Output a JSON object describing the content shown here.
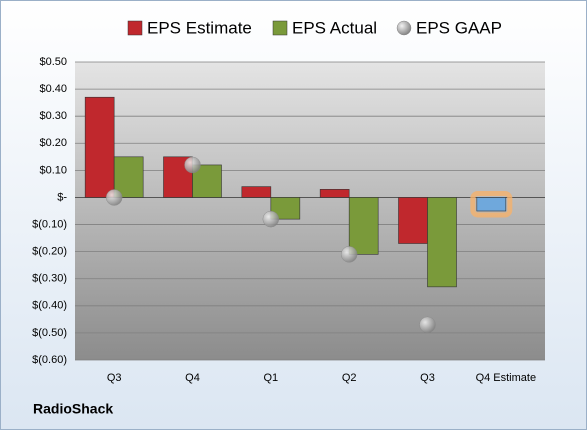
{
  "chart_data": {
    "type": "bar",
    "categories": [
      "Q3",
      "Q4",
      "Q1",
      "Q2",
      "Q3",
      "Q4 Estimate"
    ],
    "series": [
      {
        "name": "EPS Estimate",
        "color": "#c0282d",
        "colors": [
          "#c0282d",
          "#c0282d",
          "#c0282d",
          "#c0282d",
          "#c0282d",
          "#6fa8dc"
        ],
        "values": [
          0.37,
          0.15,
          0.04,
          0.03,
          -0.17,
          -0.05
        ]
      },
      {
        "name": "EPS Actual",
        "color": "#7a9a3a",
        "values": [
          0.15,
          0.12,
          -0.08,
          -0.21,
          -0.33,
          null
        ]
      },
      {
        "name": "EPS GAAP",
        "color": "#a6a6a6",
        "marker": "circle",
        "values": [
          0.0,
          0.12,
          -0.08,
          -0.21,
          -0.47,
          null
        ]
      }
    ],
    "ylim": [
      -0.6,
      0.5
    ],
    "yticks": [
      {
        "value": 0.5,
        "label": "$0.50"
      },
      {
        "value": 0.4,
        "label": "$0.40"
      },
      {
        "value": 0.3,
        "label": "$0.30"
      },
      {
        "value": 0.2,
        "label": "$0.20"
      },
      {
        "value": 0.1,
        "label": "$0.10"
      },
      {
        "value": 0,
        "label": "$-"
      },
      {
        "value": -0.1,
        "label": "$(0.10)"
      },
      {
        "value": -0.2,
        "label": "$(0.20)"
      },
      {
        "value": -0.3,
        "label": "$(0.30)"
      },
      {
        "value": -0.4,
        "label": "$(0.40)"
      },
      {
        "value": -0.5,
        "label": "$(0.50)"
      },
      {
        "value": -0.6,
        "label": "$(0.60)"
      }
    ],
    "grid": true,
    "legend": "top",
    "footer": "RadioShack"
  }
}
